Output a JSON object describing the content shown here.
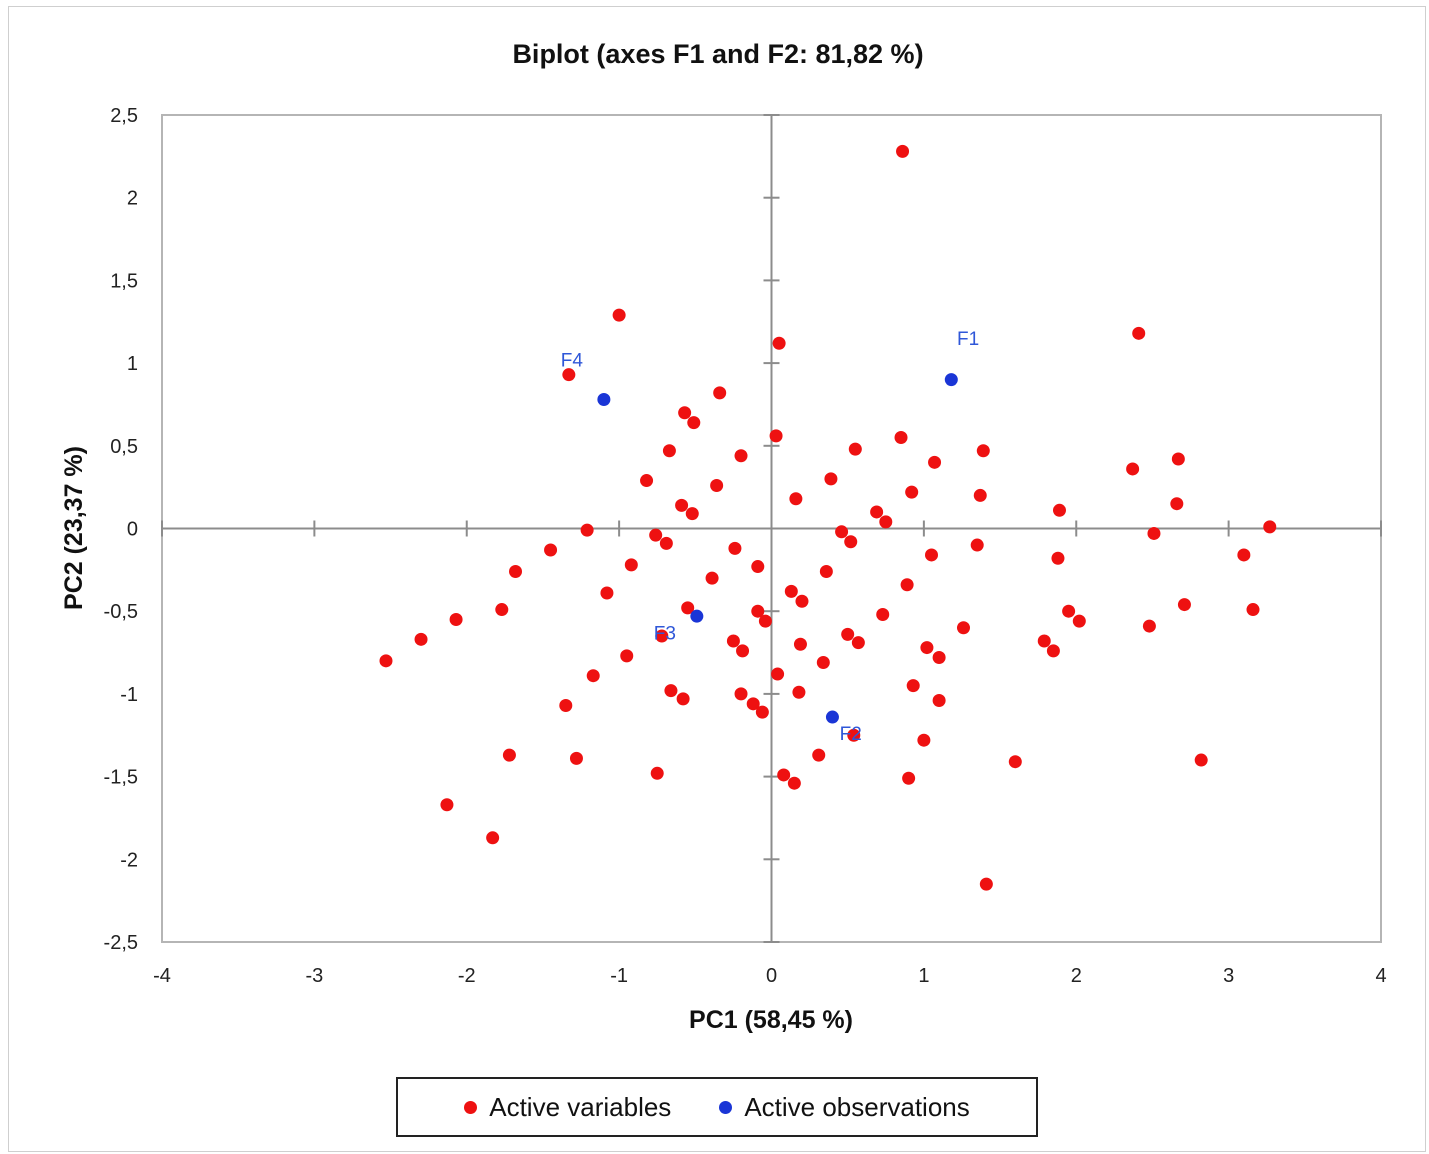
{
  "chart_data": {
    "type": "scatter",
    "title": "Biplot (axes F1 and F2: 81,82 %)",
    "xlabel": "PC1 (58,45 %)",
    "ylabel": "PC2 (23,37 %)",
    "xlim": [
      -4,
      4
    ],
    "ylim": [
      -2.5,
      2.5
    ],
    "x_ticks": [
      -4,
      -3,
      -2,
      -1,
      0,
      1,
      2,
      3,
      4
    ],
    "x_tick_labels": [
      "-4",
      "-3",
      "-2",
      "-1",
      "0",
      "1",
      "2",
      "3",
      "4"
    ],
    "y_ticks": [
      2.5,
      2,
      1.5,
      1,
      0.5,
      0,
      -0.5,
      -1,
      -1.5,
      -2,
      -2.5
    ],
    "y_tick_labels": [
      "2,5",
      "2",
      "1,5",
      "1",
      "0,5",
      "0",
      "-0,5",
      "-1",
      "-1,5",
      "-2",
      "-2,5"
    ],
    "grid": false,
    "legend_position": "bottom",
    "colors": {
      "variables": "#ee1111",
      "observations": "#1a35d6",
      "axis": "#8c8c8c",
      "label": "#2f57d8"
    },
    "series": [
      {
        "name": "Active variables",
        "points": [
          [
            0.86,
            2.28
          ],
          [
            -1.0,
            1.29
          ],
          [
            0.05,
            1.12
          ],
          [
            2.41,
            1.18
          ],
          [
            -1.33,
            0.93
          ],
          [
            -0.34,
            0.82
          ],
          [
            -0.57,
            0.7
          ],
          [
            -0.51,
            0.64
          ],
          [
            0.03,
            0.56
          ],
          [
            0.85,
            0.55
          ],
          [
            -0.67,
            0.47
          ],
          [
            0.55,
            0.48
          ],
          [
            1.39,
            0.47
          ],
          [
            -0.2,
            0.44
          ],
          [
            1.07,
            0.4
          ],
          [
            2.67,
            0.42
          ],
          [
            2.37,
            0.36
          ],
          [
            -0.82,
            0.29
          ],
          [
            0.39,
            0.3
          ],
          [
            -0.36,
            0.26
          ],
          [
            0.92,
            0.22
          ],
          [
            1.37,
            0.2
          ],
          [
            0.16,
            0.18
          ],
          [
            -0.59,
            0.14
          ],
          [
            -0.52,
            0.09
          ],
          [
            0.69,
            0.1
          ],
          [
            1.89,
            0.11
          ],
          [
            0.75,
            0.04
          ],
          [
            2.66,
            0.15
          ],
          [
            3.27,
            0.01
          ],
          [
            -1.21,
            -0.01
          ],
          [
            -0.76,
            -0.04
          ],
          [
            0.46,
            -0.02
          ],
          [
            2.51,
            -0.03
          ],
          [
            -0.69,
            -0.09
          ],
          [
            0.52,
            -0.08
          ],
          [
            1.35,
            -0.1
          ],
          [
            -1.45,
            -0.13
          ],
          [
            -0.24,
            -0.12
          ],
          [
            1.05,
            -0.16
          ],
          [
            1.88,
            -0.18
          ],
          [
            3.1,
            -0.16
          ],
          [
            -0.92,
            -0.22
          ],
          [
            -0.09,
            -0.23
          ],
          [
            -1.68,
            -0.26
          ],
          [
            0.36,
            -0.26
          ],
          [
            -0.39,
            -0.3
          ],
          [
            0.89,
            -0.34
          ],
          [
            0.13,
            -0.38
          ],
          [
            -1.08,
            -0.39
          ],
          [
            0.2,
            -0.44
          ],
          [
            2.71,
            -0.46
          ],
          [
            -1.77,
            -0.49
          ],
          [
            -0.55,
            -0.48
          ],
          [
            -0.09,
            -0.5
          ],
          [
            0.73,
            -0.52
          ],
          [
            1.95,
            -0.5
          ],
          [
            3.16,
            -0.49
          ],
          [
            -2.07,
            -0.55
          ],
          [
            -0.04,
            -0.56
          ],
          [
            2.02,
            -0.56
          ],
          [
            2.48,
            -0.59
          ],
          [
            1.26,
            -0.6
          ],
          [
            0.5,
            -0.64
          ],
          [
            -2.3,
            -0.67
          ],
          [
            -0.25,
            -0.68
          ],
          [
            1.79,
            -0.68
          ],
          [
            0.57,
            -0.69
          ],
          [
            0.19,
            -0.7
          ],
          [
            1.02,
            -0.72
          ],
          [
            -0.19,
            -0.74
          ],
          [
            1.85,
            -0.74
          ],
          [
            -0.95,
            -0.77
          ],
          [
            1.1,
            -0.78
          ],
          [
            -2.53,
            -0.8
          ],
          [
            0.34,
            -0.81
          ],
          [
            0.04,
            -0.88
          ],
          [
            -1.17,
            -0.89
          ],
          [
            0.93,
            -0.95
          ],
          [
            -0.66,
            -0.98
          ],
          [
            0.18,
            -0.99
          ],
          [
            -0.2,
            -1.0
          ],
          [
            -0.58,
            -1.03
          ],
          [
            1.1,
            -1.04
          ],
          [
            -0.12,
            -1.06
          ],
          [
            -1.35,
            -1.07
          ],
          [
            -0.06,
            -1.11
          ],
          [
            0.54,
            -1.25
          ],
          [
            1.0,
            -1.28
          ],
          [
            0.31,
            -1.37
          ],
          [
            -1.72,
            -1.37
          ],
          [
            -1.28,
            -1.39
          ],
          [
            2.82,
            -1.4
          ],
          [
            1.6,
            -1.41
          ],
          [
            -0.75,
            -1.48
          ],
          [
            0.08,
            -1.49
          ],
          [
            0.9,
            -1.51
          ],
          [
            0.15,
            -1.54
          ],
          [
            -2.13,
            -1.67
          ],
          [
            -1.83,
            -1.87
          ],
          [
            1.41,
            -2.15
          ],
          [
            -0.72,
            -0.65
          ]
        ]
      },
      {
        "name": "Active observations",
        "points": [
          [
            1.18,
            0.9
          ],
          [
            -1.1,
            0.78
          ],
          [
            -0.49,
            -0.53
          ],
          [
            0.4,
            -1.14
          ]
        ],
        "labels": [
          {
            "text": "F1",
            "x": 1.29,
            "y": 1.11
          },
          {
            "text": "F4",
            "x": -1.31,
            "y": 0.98
          },
          {
            "text": "F3",
            "x": -0.7,
            "y": -0.67
          },
          {
            "text": "F2",
            "x": 0.52,
            "y": -1.28
          }
        ]
      }
    ]
  }
}
